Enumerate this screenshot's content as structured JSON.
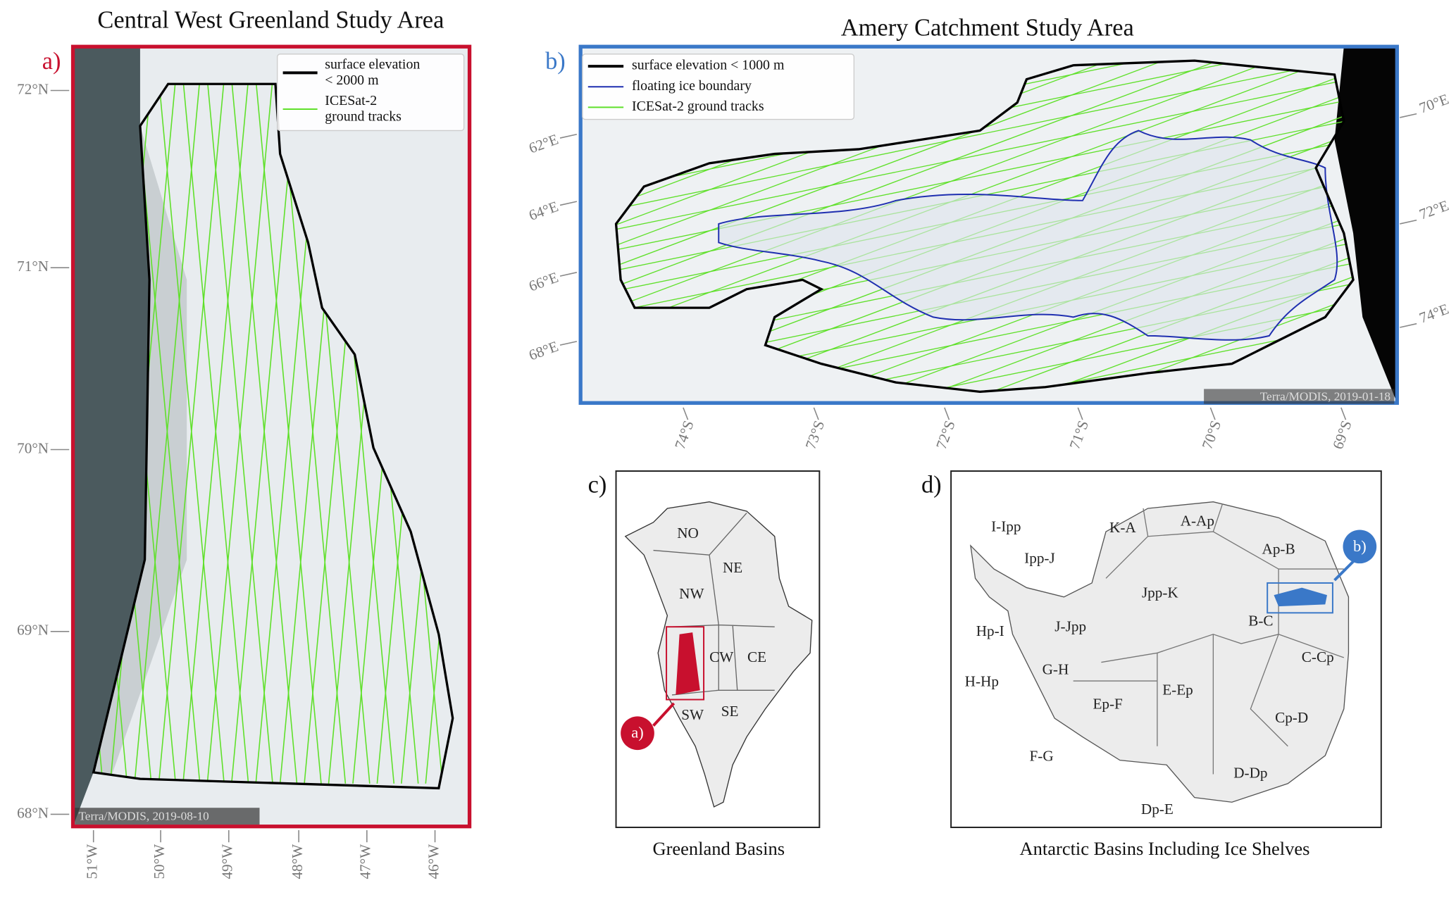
{
  "panel_a": {
    "letter": "a)",
    "title": "Central West Greenland Study Area",
    "legend": [
      {
        "lines": [
          "surface elevation",
          "< 2000 m"
        ]
      },
      {
        "lines": [
          "ICESat-2",
          "ground tracks"
        ]
      }
    ],
    "lat_labels": [
      "72°N",
      "71°N",
      "70°N",
      "69°N",
      "68°N"
    ],
    "lon_labels": [
      "51°W",
      "50°W",
      "49°W",
      "48°W",
      "47°W",
      "46°W"
    ],
    "credit": "Terra/MODIS, 2019-08-10"
  },
  "panel_b": {
    "letter": "b)",
    "title": "Amery Catchment Study Area",
    "legend": [
      "surface elevation < 1000 m",
      "floating ice boundary",
      "ICESat-2 ground tracks"
    ],
    "lon_labels_left": [
      "62°E",
      "64°E",
      "66°E",
      "68°E"
    ],
    "lon_labels_right": [
      "70°E",
      "72°E",
      "74°E"
    ],
    "lat_labels": [
      "74°S",
      "73°S",
      "72°S",
      "71°S",
      "70°S",
      "69°S"
    ],
    "credit": "Terra/MODIS, 2019-01-18"
  },
  "panel_c": {
    "letter": "c)",
    "title": "Greenland Basins",
    "basins": [
      "NO",
      "NE",
      "NW",
      "CW",
      "CE",
      "SW",
      "SE"
    ],
    "callout": "a)"
  },
  "panel_d": {
    "letter": "d)",
    "title": "Antarctic Basins Including Ice Shelves",
    "basins": [
      "I-Ipp",
      "K-A",
      "A-Ap",
      "Ipp-J",
      "Ap-B",
      "Jpp-K",
      "Hp-I",
      "J-Jpp",
      "B-C",
      "G-H",
      "C-Cp",
      "H-Hp",
      "E-Ep",
      "Ep-F",
      "Cp-D",
      "F-G",
      "D-Dp",
      "Dp-E"
    ],
    "callout": "b)"
  }
}
